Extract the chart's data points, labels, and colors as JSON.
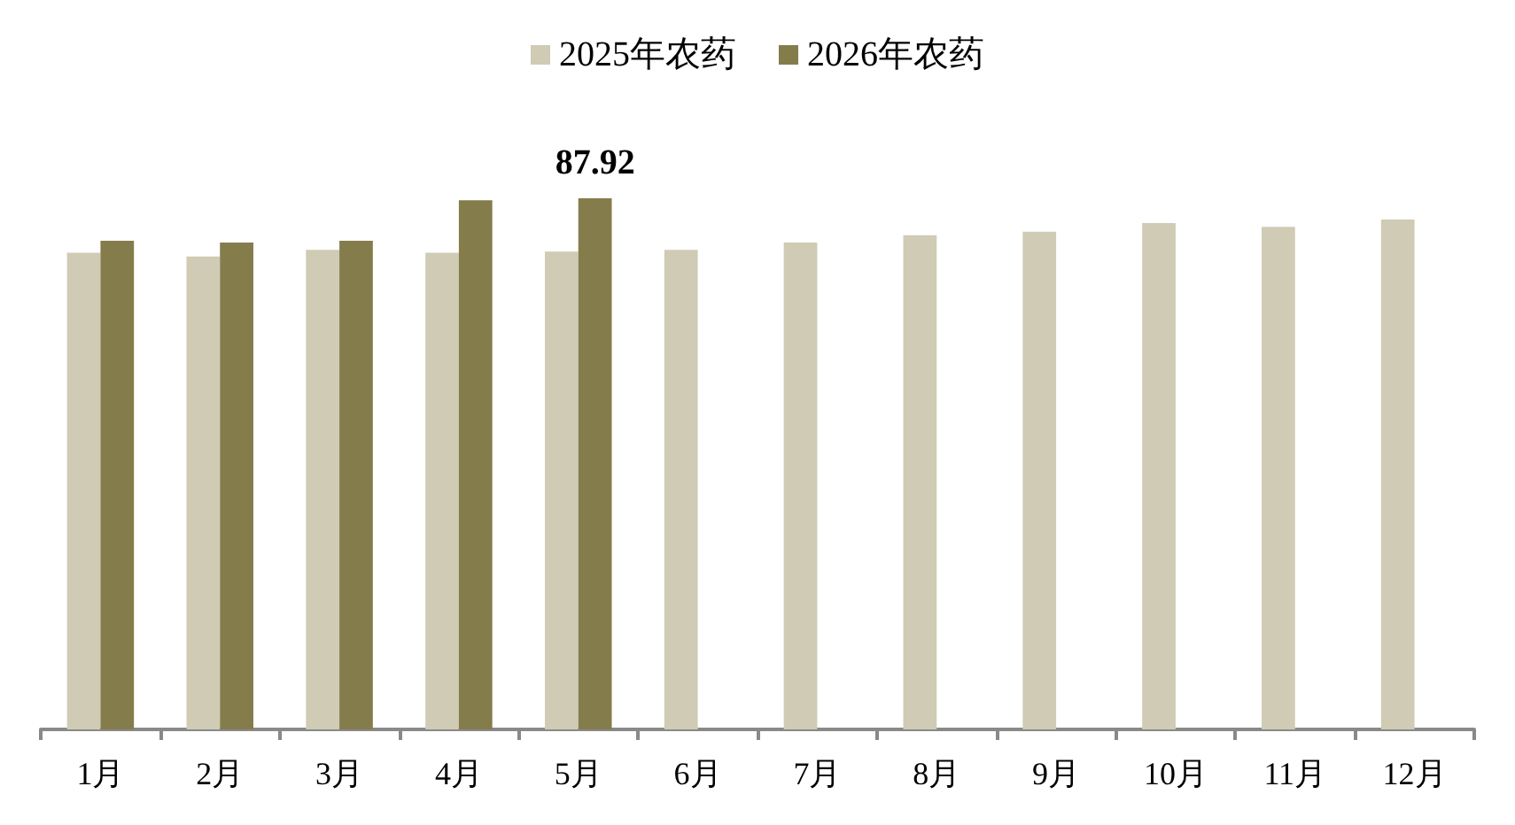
{
  "chart_data": {
    "type": "bar",
    "categories": [
      "1月",
      "2月",
      "3月",
      "4月",
      "5月",
      "6月",
      "7月",
      "8月",
      "9月",
      "10月",
      "11月",
      "12月"
    ],
    "series": [
      {
        "name": "2025年农药",
        "color": "#cfcbb4",
        "values": [
          78.9,
          78.3,
          79.4,
          78.9,
          79.1,
          79.4,
          80.6,
          81.8,
          82.4,
          83.8,
          83.2,
          84.4
        ]
      },
      {
        "name": "2026年农药",
        "color": "#857c4c",
        "values": [
          80.9,
          80.6,
          80.9,
          87.6,
          87.92,
          null,
          null,
          null,
          null,
          null,
          null,
          null
        ],
        "value_labels": [
          null,
          null,
          null,
          null,
          "87.92",
          null,
          null,
          null,
          null,
          null,
          null,
          null
        ]
      }
    ],
    "legend": "top",
    "tick_labels": "x"
  }
}
